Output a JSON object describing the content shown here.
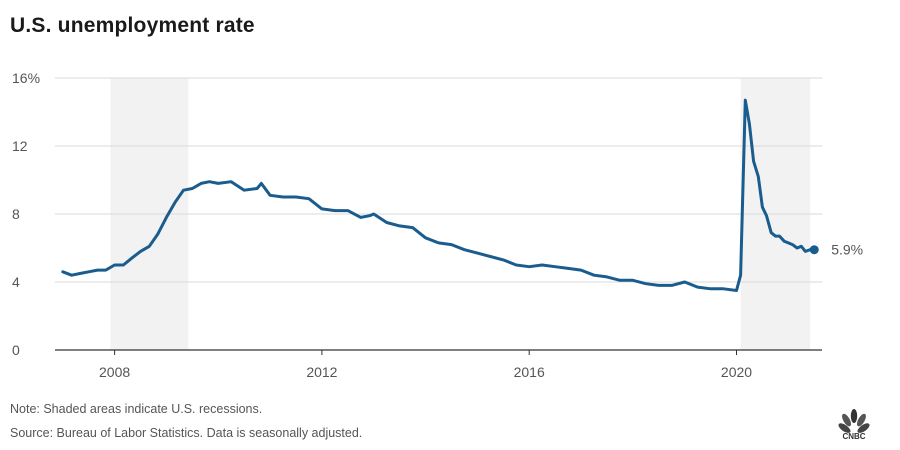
{
  "title": "U.S. unemployment rate",
  "note": "Note: Shaded areas indicate U.S. recessions.",
  "source": "Source: Bureau of Labor Statistics. Data is seasonally adjusted.",
  "logo_text": "CNBC",
  "colors": {
    "line": "#1a5c8e",
    "shade": "#f2f2f2",
    "grid": "#d9d9d9",
    "axis": "#333333"
  },
  "chart_data": {
    "type": "line",
    "xlim": [
      2006.85,
      2021.65
    ],
    "ylim": [
      0,
      16
    ],
    "y_ticks": [
      0,
      4,
      8,
      12,
      16
    ],
    "y_tick_labels": [
      "0",
      "4",
      "8",
      "12",
      "16%"
    ],
    "x_ticks": [
      2008,
      2012,
      2016,
      2020
    ],
    "x_tick_labels": [
      "2008",
      "2012",
      "2016",
      "2020"
    ],
    "recessions": [
      [
        2007.92,
        2009.42
      ],
      [
        2020.08,
        2021.42
      ]
    ],
    "end_label": "5.9%",
    "series": [
      {
        "x": [
          2007.0,
          2007.17,
          2007.33,
          2007.5,
          2007.67,
          2007.83,
          2008.0,
          2008.17,
          2008.33,
          2008.5,
          2008.67,
          2008.83,
          2009.0,
          2009.17,
          2009.33,
          2009.5,
          2009.67,
          2009.83,
          2010.0,
          2010.25,
          2010.5,
          2010.75,
          2010.83,
          2011.0,
          2011.25,
          2011.5,
          2011.75,
          2012.0,
          2012.25,
          2012.5,
          2012.75,
          2012.92,
          2013.0,
          2013.25,
          2013.5,
          2013.75,
          2014.0,
          2014.25,
          2014.5,
          2014.75,
          2015.0,
          2015.25,
          2015.5,
          2015.75,
          2016.0,
          2016.25,
          2016.5,
          2016.75,
          2017.0,
          2017.25,
          2017.5,
          2017.75,
          2018.0,
          2018.25,
          2018.5,
          2018.75,
          2019.0,
          2019.25,
          2019.5,
          2019.75,
          2020.0,
          2020.08,
          2020.17,
          2020.25,
          2020.33,
          2020.42,
          2020.5,
          2020.58,
          2020.67,
          2020.75,
          2020.83,
          2020.92,
          2021.0,
          2021.08,
          2021.17,
          2021.25,
          2021.33,
          2021.42,
          2021.5
        ],
        "values": [
          4.6,
          4.4,
          4.5,
          4.6,
          4.7,
          4.7,
          5.0,
          5.0,
          5.4,
          5.8,
          6.1,
          6.8,
          7.8,
          8.7,
          9.4,
          9.5,
          9.8,
          9.9,
          9.8,
          9.9,
          9.4,
          9.5,
          9.8,
          9.1,
          9.0,
          9.0,
          8.9,
          8.3,
          8.2,
          8.2,
          7.8,
          7.9,
          8.0,
          7.5,
          7.3,
          7.2,
          6.6,
          6.3,
          6.2,
          5.9,
          5.7,
          5.5,
          5.3,
          5.0,
          4.9,
          5.0,
          4.9,
          4.8,
          4.7,
          4.4,
          4.3,
          4.1,
          4.1,
          3.9,
          3.8,
          3.8,
          4.0,
          3.7,
          3.6,
          3.6,
          3.5,
          4.4,
          14.7,
          13.3,
          11.1,
          10.2,
          8.4,
          7.9,
          6.9,
          6.7,
          6.7,
          6.4,
          6.3,
          6.2,
          6.0,
          6.1,
          5.8,
          5.9,
          5.9
        ]
      }
    ]
  }
}
